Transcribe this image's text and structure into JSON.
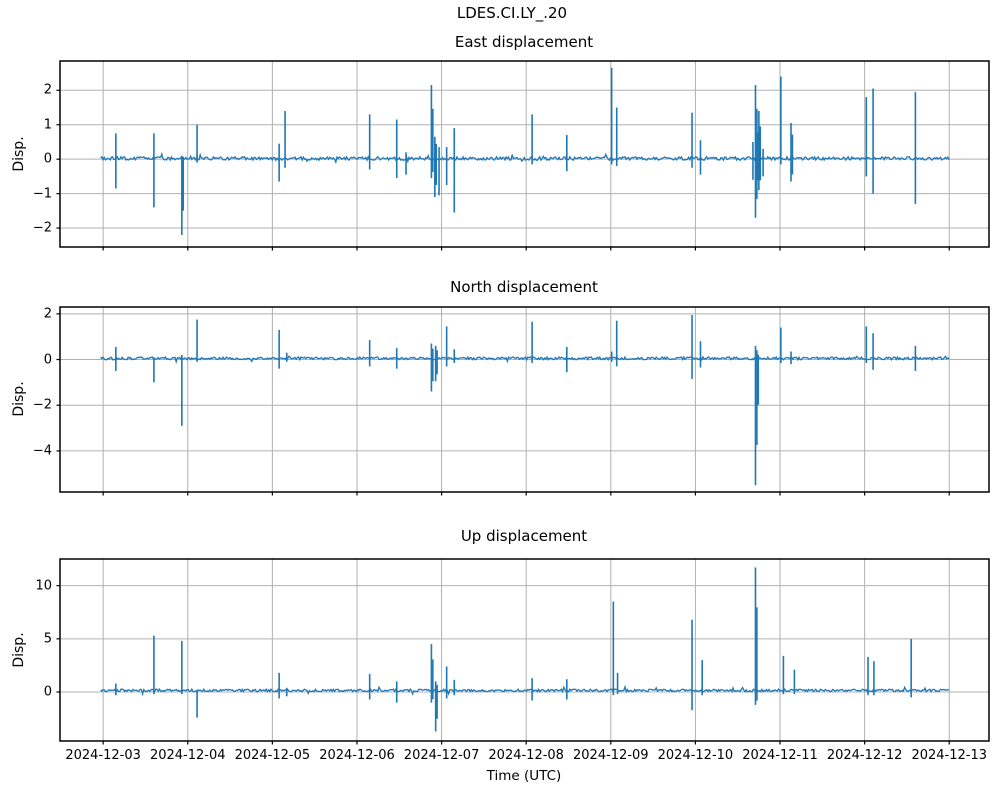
{
  "figure_title": "LDES.CI.LY_.20",
  "x_axis": {
    "label": "Time (UTC)",
    "ticks_days": [
      3,
      4,
      5,
      6,
      7,
      8,
      9,
      10,
      11,
      12,
      13
    ],
    "ticklabels": [
      "2024-12-03",
      "2024-12-04",
      "2024-12-05",
      "2024-12-06",
      "2024-12-07",
      "2024-12-08",
      "2024-12-09",
      "2024-12-10",
      "2024-12-11",
      "2024-12-12",
      "2024-12-13"
    ],
    "xlim_days": [
      2.49,
      13.47
    ],
    "data_range_days": [
      2.97,
      13.0
    ]
  },
  "colors": {
    "line": "#1f77b4",
    "grid": "#b0b0b0",
    "spine": "#000000",
    "text": "#000000",
    "background": "#ffffff"
  },
  "chart_data": [
    {
      "type": "line",
      "title": "East displacement",
      "ylabel": "Disp.",
      "ylim": [
        -2.55,
        2.85
      ],
      "yticks": [
        -2,
        -1,
        0,
        1,
        2
      ],
      "grid": true,
      "baseline": 0.02,
      "noise": 0.05,
      "events": [
        [
          3.15,
          0.75,
          -0.85
        ],
        [
          3.6,
          0.75,
          -1.4
        ],
        [
          3.93,
          0.1,
          -2.2,
          2
        ],
        [
          4.11,
          1.0,
          -0.1
        ],
        [
          5.08,
          0.45,
          -0.65
        ],
        [
          5.15,
          1.4,
          -0.25
        ],
        [
          6.15,
          1.3,
          -0.3
        ],
        [
          6.47,
          1.15,
          -0.55
        ],
        [
          6.58,
          0.2,
          -0.45
        ],
        [
          6.88,
          2.15,
          -0.55,
          2
        ],
        [
          6.92,
          0.65,
          -1.1,
          2
        ],
        [
          6.97,
          0.35,
          -1.05
        ],
        [
          7.06,
          0.35,
          -0.75
        ],
        [
          7.15,
          0.9,
          -1.55
        ],
        [
          8.07,
          1.3,
          -0.15
        ],
        [
          8.48,
          0.7,
          -0.35
        ],
        [
          9.01,
          2.65,
          -0.15
        ],
        [
          9.07,
          1.5,
          -0.2
        ],
        [
          9.96,
          1.35,
          -0.25
        ],
        [
          10.06,
          0.55,
          -0.45
        ],
        [
          10.68,
          0.5,
          -0.6
        ],
        [
          10.71,
          2.15,
          -1.7,
          3
        ],
        [
          10.75,
          1.4,
          -0.9,
          2
        ],
        [
          10.8,
          0.3,
          -0.5
        ],
        [
          11.01,
          2.4,
          -0.15
        ],
        [
          11.13,
          1.05,
          -0.65,
          2
        ],
        [
          12.02,
          1.8,
          -0.5
        ],
        [
          12.1,
          2.05,
          -1.0
        ],
        [
          12.6,
          1.95,
          -1.3
        ]
      ]
    },
    {
      "type": "line",
      "title": "North displacement",
      "ylabel": "Disp.",
      "ylim": [
        -5.8,
        2.3
      ],
      "yticks": [
        -4,
        -2,
        0,
        2
      ],
      "grid": true,
      "baseline": 0.05,
      "noise": 0.06,
      "events": [
        [
          3.15,
          0.55,
          -0.5
        ],
        [
          3.6,
          0.1,
          -1.0
        ],
        [
          3.93,
          0.2,
          -2.9
        ],
        [
          4.11,
          1.75,
          -0.1
        ],
        [
          5.08,
          1.3,
          -0.4
        ],
        [
          5.17,
          0.3,
          -0.1
        ],
        [
          6.15,
          0.85,
          -0.3
        ],
        [
          6.47,
          0.5,
          -0.4
        ],
        [
          6.88,
          0.7,
          -1.4,
          2
        ],
        [
          6.93,
          0.6,
          -0.95,
          2
        ],
        [
          7.06,
          1.45,
          -0.3
        ],
        [
          7.15,
          0.45,
          -0.15
        ],
        [
          8.07,
          1.65,
          -0.15
        ],
        [
          8.48,
          0.55,
          -0.55
        ],
        [
          9.01,
          0.35,
          -0.1
        ],
        [
          9.07,
          1.7,
          -0.3
        ],
        [
          9.96,
          1.95,
          -0.85
        ],
        [
          10.06,
          0.8,
          -0.35
        ],
        [
          10.71,
          0.6,
          -5.5,
          3
        ],
        [
          11.01,
          1.4,
          -0.15
        ],
        [
          11.13,
          0.35,
          -0.2
        ],
        [
          12.02,
          1.45,
          -0.15
        ],
        [
          12.1,
          1.15,
          -0.45
        ],
        [
          12.6,
          0.6,
          -0.5
        ]
      ]
    },
    {
      "type": "line",
      "title": "Up displacement",
      "ylabel": "Disp.",
      "ylim": [
        -4.6,
        12.5
      ],
      "yticks": [
        0,
        5,
        10
      ],
      "grid": true,
      "baseline": 0.15,
      "noise": 0.12,
      "events": [
        [
          3.15,
          0.8,
          -0.3
        ],
        [
          3.6,
          5.3,
          -0.2
        ],
        [
          3.93,
          4.8,
          -0.2
        ],
        [
          4.11,
          0.2,
          -2.4
        ],
        [
          5.08,
          1.8,
          -0.6
        ],
        [
          5.17,
          0.4,
          -0.4
        ],
        [
          6.15,
          1.7,
          -0.7
        ],
        [
          6.47,
          1.0,
          -1.0
        ],
        [
          6.88,
          4.5,
          -1.0,
          2
        ],
        [
          6.93,
          1.0,
          -3.7,
          2
        ],
        [
          7.06,
          2.4,
          -0.6
        ],
        [
          7.15,
          1.15,
          -0.3
        ],
        [
          8.07,
          1.3,
          -0.8
        ],
        [
          8.48,
          1.2,
          -0.7
        ],
        [
          9.03,
          8.5,
          -0.3
        ],
        [
          9.08,
          1.8,
          -0.2
        ],
        [
          9.96,
          6.8,
          -1.7
        ],
        [
          10.08,
          3.0,
          -0.3
        ],
        [
          10.71,
          11.7,
          -1.2,
          2
        ],
        [
          11.04,
          3.4,
          -0.2
        ],
        [
          11.17,
          2.1,
          -0.2
        ],
        [
          12.04,
          3.3,
          -0.3
        ],
        [
          12.11,
          2.9,
          -0.3
        ],
        [
          12.55,
          5.0,
          -0.5
        ]
      ]
    }
  ]
}
